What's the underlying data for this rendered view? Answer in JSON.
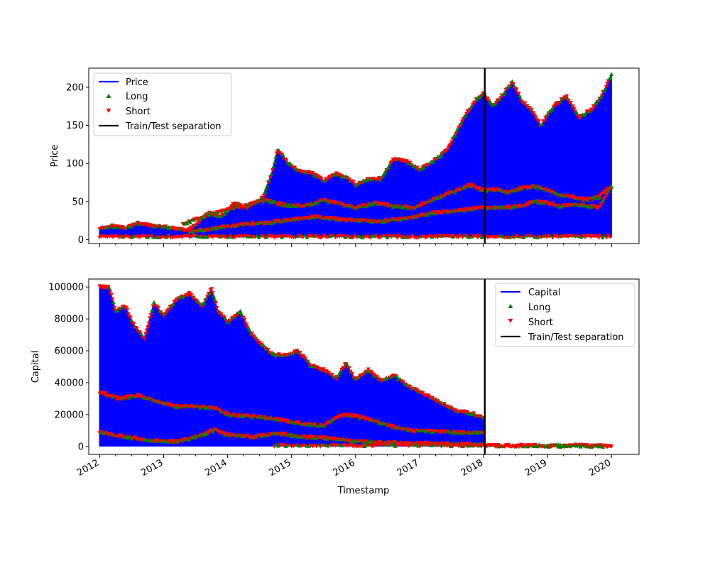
{
  "chart_data": [
    {
      "type": "line",
      "title": "",
      "xlabel": "",
      "ylabel": "Price",
      "xlim": [
        2011.83,
        2020.43
      ],
      "ylim": [
        -5,
        225
      ],
      "yticks": [
        0,
        50,
        100,
        150,
        200
      ],
      "separation_x": 2018.02,
      "legend": {
        "placement": "upper-left",
        "entries": [
          {
            "label": "Price",
            "marker": "line",
            "color": "#0000ff"
          },
          {
            "label": "Long",
            "marker": "triangle-up",
            "color": "#008000"
          },
          {
            "label": "Short",
            "marker": "triangle-down",
            "color": "#ff0000"
          },
          {
            "label": "Train/Test separation",
            "marker": "line",
            "color": "#000000"
          }
        ]
      },
      "series": [
        {
          "name": "Price",
          "band": "upper",
          "x": [
            2012.0,
            2012.2,
            2012.4,
            2012.6,
            2012.8,
            2013.0,
            2013.2,
            2013.35,
            2013.5,
            2013.7,
            2013.9,
            2014.1,
            2014.3,
            2014.55,
            2014.7,
            2014.78,
            2014.85,
            2014.95,
            2015.1,
            2015.3,
            2015.5,
            2015.7,
            2015.85,
            2016.0,
            2016.2,
            2016.4,
            2016.6,
            2016.8,
            2017.0,
            2017.2,
            2017.45,
            2017.7,
            2017.9,
            2018.0,
            2018.15,
            2018.3,
            2018.45,
            2018.6,
            2018.75,
            2018.9,
            2019.1,
            2019.3,
            2019.5,
            2019.7,
            2019.85,
            2020.0
          ],
          "y": [
            14,
            18,
            15,
            22,
            18,
            17,
            14,
            12,
            20,
            35,
            30,
            48,
            42,
            55,
            90,
            118,
            112,
            100,
            90,
            88,
            78,
            86,
            82,
            72,
            80,
            80,
            106,
            103,
            92,
            102,
            120,
            162,
            185,
            192,
            175,
            190,
            207,
            182,
            170,
            150,
            176,
            188,
            160,
            172,
            190,
            217
          ]
        },
        {
          "name": "Price",
          "band": "mid",
          "x": [
            2013.3,
            2013.6,
            2013.9,
            2014.1,
            2014.3,
            2014.6,
            2014.9,
            2015.2,
            2015.5,
            2015.8,
            2016.0,
            2016.3,
            2016.6,
            2016.9,
            2017.2,
            2017.5,
            2017.8,
            2018.0,
            2018.2,
            2018.4,
            2018.6,
            2018.8,
            2019.0,
            2019.2,
            2019.4,
            2019.6,
            2019.8,
            2020.0
          ],
          "y": [
            20,
            30,
            38,
            42,
            45,
            52,
            45,
            44,
            52,
            46,
            42,
            48,
            44,
            42,
            52,
            62,
            72,
            64,
            66,
            62,
            68,
            70,
            65,
            58,
            56,
            52,
            56,
            70
          ]
        },
        {
          "name": "Price",
          "band": "low",
          "x": [
            2013.4,
            2013.8,
            2014.2,
            2014.6,
            2015.0,
            2015.4,
            2015.8,
            2016.1,
            2016.4,
            2016.8,
            2017.2,
            2017.6,
            2018.0,
            2018.3,
            2018.6,
            2018.8,
            2019.0,
            2019.2,
            2019.5,
            2019.8,
            2020.0
          ],
          "y": [
            10,
            15,
            20,
            22,
            26,
            30,
            26,
            25,
            24,
            28,
            35,
            38,
            42,
            42,
            44,
            50,
            48,
            44,
            46,
            42,
            70
          ]
        }
      ]
    },
    {
      "type": "line",
      "title": "",
      "xlabel": "Timestamp",
      "ylabel": "Capital",
      "xlim": [
        2011.83,
        2020.43
      ],
      "ylim": [
        -5000,
        105000
      ],
      "yticks": [
        0,
        20000,
        40000,
        60000,
        80000,
        100000
      ],
      "separation_x": 2018.02,
      "xticks": [
        "2012",
        "2013",
        "2014",
        "2015",
        "2016",
        "2017",
        "2018",
        "2019",
        "2020"
      ],
      "legend": {
        "placement": "upper-right",
        "entries": [
          {
            "label": "Capital",
            "marker": "line",
            "color": "#0000ff"
          },
          {
            "label": "Long",
            "marker": "triangle-up",
            "color": "#008000"
          },
          {
            "label": "Short",
            "marker": "triangle-down",
            "color": "#ff0000"
          },
          {
            "label": "Train/Test separation",
            "marker": "line",
            "color": "#000000"
          }
        ]
      },
      "series": [
        {
          "name": "Capital",
          "band": "upper",
          "x": [
            2012.0,
            2012.15,
            2012.25,
            2012.4,
            2012.55,
            2012.7,
            2012.85,
            2013.0,
            2013.2,
            2013.4,
            2013.6,
            2013.75,
            2013.85,
            2014.0,
            2014.2,
            2014.35,
            2014.5,
            2014.7,
            2014.9,
            2015.1,
            2015.3,
            2015.5,
            2015.7,
            2015.85,
            2016.0,
            2016.2,
            2016.4,
            2016.6,
            2016.8,
            2017.0,
            2017.2,
            2017.4,
            2017.6,
            2017.8,
            2018.0
          ],
          "y": [
            100000,
            100000,
            85000,
            88000,
            75000,
            68000,
            90000,
            82000,
            92000,
            96000,
            88000,
            99000,
            85000,
            78000,
            85000,
            72000,
            65000,
            58000,
            57000,
            60000,
            51000,
            48000,
            43000,
            52000,
            42000,
            48000,
            41000,
            45000,
            38000,
            34000,
            30000,
            26000,
            22000,
            21000,
            18000
          ]
        },
        {
          "name": "Capital",
          "band": "mid",
          "x": [
            2012.0,
            2012.3,
            2012.6,
            2012.9,
            2013.2,
            2013.5,
            2013.8,
            2014.0,
            2014.3,
            2014.6,
            2014.9,
            2015.2,
            2015.5,
            2015.8,
            2016.0,
            2016.3,
            2016.6,
            2016.9,
            2017.2,
            2017.5,
            2017.8,
            2018.0
          ],
          "y": [
            34000,
            30000,
            32000,
            28000,
            25000,
            25000,
            24000,
            20000,
            19000,
            18000,
            16000,
            14000,
            13000,
            20000,
            19000,
            16000,
            12000,
            10000,
            9500,
            9000,
            8500,
            9000
          ]
        },
        {
          "name": "Capital",
          "band": "low",
          "x": [
            2012.0,
            2012.4,
            2012.8,
            2013.2,
            2013.6,
            2013.8,
            2014.0,
            2014.4,
            2014.8,
            2015.2,
            2015.6,
            2016.0,
            2016.4,
            2016.8,
            2017.2,
            2017.6,
            2018.0
          ],
          "y": [
            9000,
            6000,
            3500,
            3000,
            7000,
            10500,
            7000,
            6000,
            8000,
            6000,
            5000,
            3000,
            2500,
            2000,
            1800,
            1500,
            1200
          ]
        },
        {
          "name": "Capital",
          "band": "test",
          "x": [
            2018.05,
            2018.5,
            2019.0,
            2019.5,
            2020.0
          ],
          "y": [
            500,
            400,
            300,
            300,
            200
          ]
        }
      ]
    }
  ]
}
